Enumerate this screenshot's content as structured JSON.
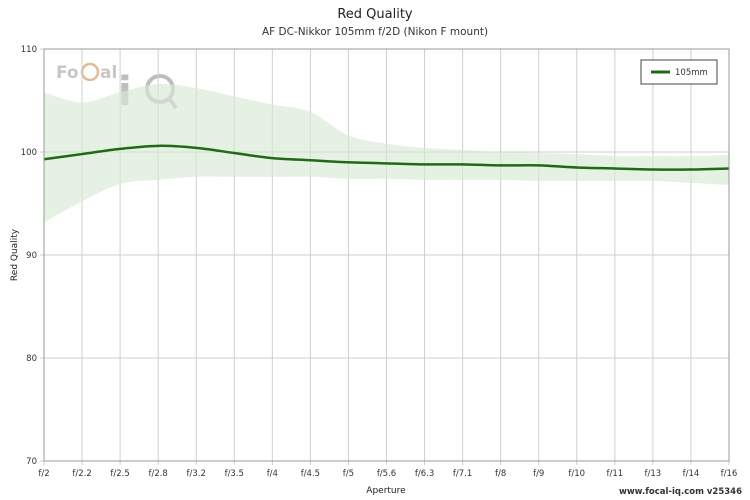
{
  "chart_data": {
    "type": "line",
    "title": "Red Quality",
    "subtitle": "AF DC-Nikkor 105mm f/2D (Nikon F mount)",
    "xlabel": "Aperture",
    "ylabel": "Red Quality",
    "x": [
      "f/2",
      "f/2.2",
      "f/2.5",
      "f/2.8",
      "f/3.2",
      "f/3.5",
      "f/4",
      "f/4.5",
      "f/5",
      "f/5.6",
      "f/6.3",
      "f/7.1",
      "f/8",
      "f/9",
      "f/10",
      "f/11",
      "f/13",
      "f/14",
      "f/16"
    ],
    "ylim": [
      70,
      110
    ],
    "yticks": [
      70,
      80,
      90,
      100,
      110
    ],
    "series": [
      {
        "name": "105mm",
        "color": "#1e6b14",
        "values": [
          99.3,
          99.8,
          100.3,
          100.6,
          100.4,
          99.9,
          99.4,
          99.2,
          99.0,
          98.9,
          98.8,
          98.8,
          98.7,
          98.7,
          98.5,
          98.4,
          98.3,
          98.3,
          98.4
        ],
        "band_upper": [
          105.8,
          104.8,
          105.8,
          106.6,
          106.2,
          105.4,
          104.6,
          103.9,
          101.6,
          100.8,
          100.4,
          100.2,
          100.0,
          99.9,
          99.8,
          99.6,
          99.6,
          99.6,
          99.7
        ],
        "band_lower": [
          93.2,
          95.2,
          96.9,
          97.3,
          97.6,
          97.6,
          97.6,
          97.6,
          97.4,
          97.4,
          97.3,
          97.3,
          97.3,
          97.2,
          97.2,
          97.2,
          97.2,
          97.0,
          96.8
        ]
      }
    ],
    "band_color": "#d7ead2",
    "grid": true,
    "legend": "top-right"
  },
  "watermark": "FoCal iQ",
  "footer": "www.focal-iq.com  v25346"
}
